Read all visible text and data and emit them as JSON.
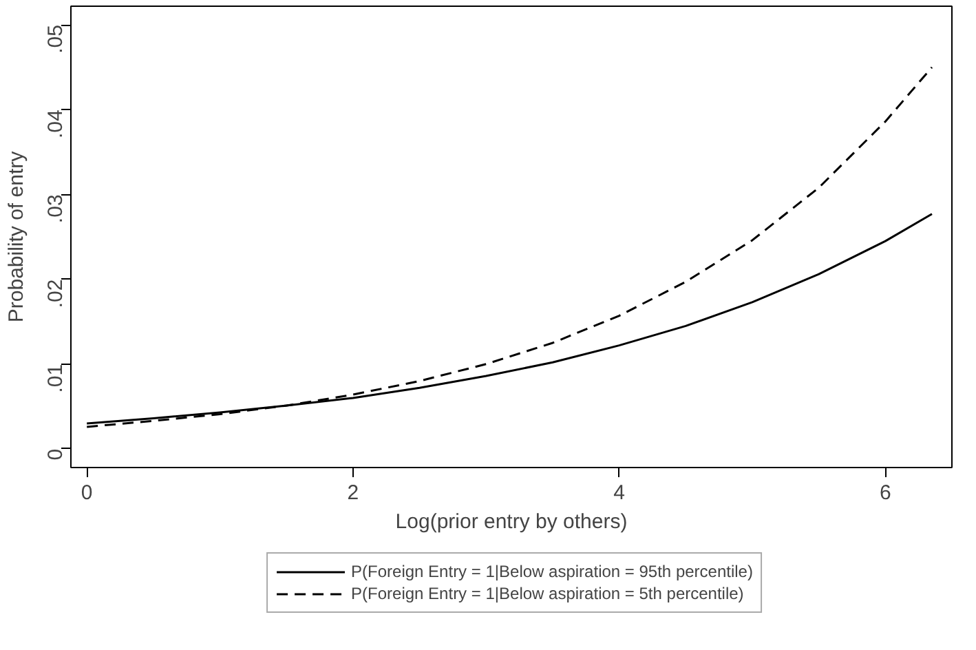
{
  "chart_data": {
    "type": "line",
    "xlabel": "Log(prior entry by others)",
    "ylabel": "Probability of entry",
    "x": [
      0,
      0.5,
      1,
      1.5,
      2,
      2.5,
      3,
      3.5,
      4,
      4.5,
      5,
      5.5,
      6,
      6.35
    ],
    "series": [
      {
        "name": "P(Foreign Entry = 1|Below aspiration = 95th percentile)",
        "color": "#000000",
        "line_style": "solid",
        "values": [
          0.003,
          0.0036,
          0.0043,
          0.0051,
          0.006,
          0.0072,
          0.0086,
          0.0102,
          0.0122,
          0.0145,
          0.0173,
          0.0206,
          0.0245,
          0.0277
        ]
      },
      {
        "name": "P(Foreign Entry = 1|Below aspiration = 5th percentile)",
        "color": "#000000",
        "line_style": "dashed",
        "values": [
          0.0026,
          0.0033,
          0.0041,
          0.0051,
          0.0064,
          0.008,
          0.01,
          0.0125,
          0.0157,
          0.0197,
          0.0246,
          0.0308,
          0.0386,
          0.045
        ]
      }
    ],
    "xlim": [
      -0.12,
      6.5
    ],
    "ylim": [
      -0.0022,
      0.0522
    ],
    "xticks": [
      0,
      2,
      4,
      6
    ],
    "yticks": [
      {
        "value": 0,
        "label": "0"
      },
      {
        "value": 0.01,
        "label": ".01"
      },
      {
        "value": 0.02,
        "label": ".02"
      },
      {
        "value": 0.03,
        "label": ".03"
      },
      {
        "value": 0.04,
        "label": ".04"
      },
      {
        "value": 0.05,
        "label": ".05"
      }
    ],
    "grid": false,
    "legend": "bottom",
    "marker": "none"
  }
}
